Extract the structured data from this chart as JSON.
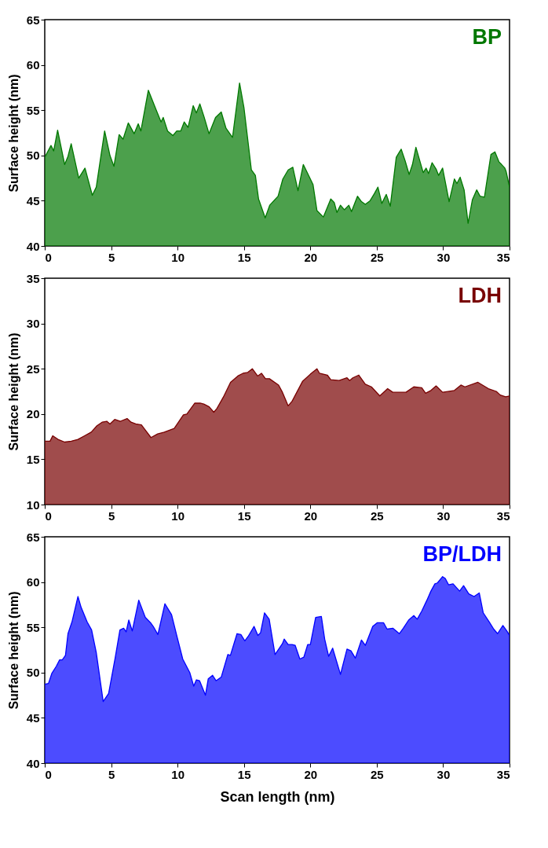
{
  "chart_data": [
    {
      "type": "area",
      "ylabel": "Surface height (nm)",
      "xlim": [
        0,
        35
      ],
      "xticks": [
        0,
        5,
        10,
        15,
        20,
        25,
        30,
        35
      ],
      "ylim": [
        40,
        65
      ],
      "yticks": [
        40,
        45,
        50,
        55,
        60,
        65
      ],
      "x": [
        0,
        0.47,
        0.67,
        0.97,
        1.5,
        1.75,
        1.99,
        2.56,
        3.03,
        3.58,
        3.88,
        4.51,
        4.91,
        5.21,
        5.6,
        5.9,
        6.29,
        6.73,
        7.04,
        7.24,
        7.8,
        8.4,
        8.76,
        8.92,
        9.25,
        9.65,
        9.94,
        10.24,
        10.5,
        10.79,
        11.18,
        11.42,
        11.68,
        12.01,
        12.37,
        12.86,
        13.29,
        13.65,
        14.14,
        14.67,
        15.0,
        15.56,
        15.86,
        16.1,
        16.6,
        16.94,
        17.57,
        17.93,
        18.33,
        18.68,
        19.07,
        19.47,
        19.8,
        20.2,
        20.5,
        20.98,
        21.54,
        21.8,
        22.0,
        22.27,
        22.56,
        22.9,
        23.1,
        23.55,
        23.85,
        24.14,
        24.5,
        24.83,
        25.09,
        25.38,
        25.72,
        26.02,
        26.47,
        26.84,
        27.14,
        27.44,
        27.69,
        27.95,
        28.5,
        28.72,
        28.9,
        29.17,
        29.47,
        29.66,
        29.96,
        30.45,
        30.85,
        31.04,
        31.28,
        31.58,
        31.88,
        32.2,
        32.53,
        32.78,
        33.11,
        33.6,
        33.9,
        34.2,
        34.4,
        34.65,
        34.75,
        35
      ],
      "series": [
        {
          "name": "BP",
          "color": "#007800",
          "values": [
            49.8,
            51.1,
            50.5,
            52.8,
            49.0,
            49.9,
            51.3,
            47.5,
            48.6,
            45.6,
            46.5,
            52.7,
            50.0,
            48.8,
            52.3,
            51.8,
            53.6,
            52.4,
            53.5,
            52.7,
            57.2,
            55.0,
            53.7,
            54.2,
            52.7,
            52.2,
            52.7,
            52.7,
            53.7,
            53.1,
            55.5,
            54.7,
            55.7,
            54.2,
            52.4,
            54.2,
            54.8,
            53.0,
            52.0,
            58.0,
            55.3,
            48.4,
            47.8,
            45.2,
            43.1,
            44.5,
            45.5,
            47.4,
            48.4,
            48.7,
            46.1,
            49.0,
            48.0,
            46.8,
            43.9,
            43.2,
            45.2,
            44.8,
            43.7,
            44.5,
            44.0,
            44.5,
            43.8,
            45.5,
            44.9,
            44.6,
            45.0,
            45.8,
            46.5,
            44.7,
            45.7,
            44.4,
            49.8,
            50.7,
            49.4,
            47.9,
            49.0,
            50.9,
            48.1,
            48.6,
            48.0,
            49.2,
            48.5,
            47.8,
            48.6,
            44.9,
            47.4,
            46.9,
            47.6,
            46.2,
            42.5,
            45.1,
            46.2,
            45.5,
            45.4,
            50.1,
            50.4,
            49.3,
            49.0,
            48.6,
            48.2,
            46.5
          ]
        }
      ]
    },
    {
      "type": "area",
      "ylabel": "Surface height (nm)",
      "xlim": [
        0,
        35
      ],
      "xticks": [
        0,
        5,
        10,
        15,
        20,
        25,
        30,
        35
      ],
      "ylim": [
        10,
        35
      ],
      "yticks": [
        10,
        15,
        20,
        25,
        30,
        35
      ],
      "x": [
        0,
        0.4,
        0.6,
        1,
        1.5,
        2,
        2.5,
        3,
        3.5,
        3.93,
        4.32,
        4.67,
        4.91,
        5.27,
        5.7,
        6.2,
        6.5,
        6.85,
        7.28,
        7.48,
        8.0,
        8.5,
        9.0,
        9.75,
        10.44,
        10.7,
        11.3,
        11.7,
        11.98,
        12.38,
        12.73,
        12.96,
        13.46,
        13.99,
        14.54,
        14.93,
        15.29,
        15.63,
        16.03,
        16.32,
        16.62,
        16.92,
        17.61,
        17.9,
        18.33,
        18.62,
        19.41,
        20.0,
        20.5,
        20.69,
        21.28,
        21.54,
        22.17,
        22.76,
        22.96,
        23.2,
        23.65,
        24.14,
        24.6,
        25.23,
        25.82,
        26.21,
        27.2,
        27.79,
        28.39,
        28.68,
        29.08,
        29.47,
        29.96,
        30.85,
        31.34,
        31.64,
        32.62,
        33.41,
        34.0,
        34.3,
        34.7,
        35
      ],
      "series": [
        {
          "name": "LDH",
          "color": "#780000",
          "values": [
            17.0,
            17.0,
            17.6,
            17.2,
            16.9,
            17.0,
            17.2,
            17.6,
            18.0,
            18.7,
            19.1,
            19.2,
            18.9,
            19.4,
            19.2,
            19.5,
            19.1,
            18.9,
            18.8,
            18.4,
            17.4,
            17.8,
            18.0,
            18.4,
            19.9,
            20.0,
            21.2,
            21.2,
            21.1,
            20.8,
            20.2,
            20.6,
            21.9,
            23.5,
            24.2,
            24.5,
            24.6,
            25.0,
            24.2,
            24.5,
            23.9,
            23.9,
            23.2,
            22.4,
            20.9,
            21.4,
            23.6,
            24.4,
            25.0,
            24.5,
            24.3,
            23.8,
            23.7,
            24.0,
            23.7,
            24.0,
            24.3,
            23.3,
            23.0,
            22.0,
            22.8,
            22.4,
            22.4,
            23.0,
            22.9,
            22.3,
            22.6,
            23.1,
            22.4,
            22.6,
            23.2,
            23.0,
            23.5,
            22.8,
            22.5,
            22.1,
            21.9,
            22.0
          ]
        }
      ]
    },
    {
      "type": "area",
      "xlabel": "Scan length (nm)",
      "ylabel": "Surface height (nm)",
      "xlim": [
        0,
        35
      ],
      "xticks": [
        0,
        5,
        10,
        15,
        20,
        25,
        30,
        35
      ],
      "ylim": [
        40,
        65
      ],
      "yticks": [
        40,
        45,
        50,
        55,
        60,
        65
      ],
      "x": [
        0,
        0.28,
        0.53,
        0.87,
        1.12,
        1.32,
        1.56,
        1.75,
        2.05,
        2.5,
        2.74,
        3.19,
        3.53,
        3.88,
        4.4,
        4.81,
        5.3,
        5.66,
        5.94,
        6.13,
        6.33,
        6.59,
        7.08,
        7.57,
        7.97,
        8.17,
        8.52,
        9.05,
        9.55,
        9.94,
        10.39,
        10.92,
        11.22,
        11.42,
        11.66,
        12.1,
        12.31,
        12.64,
        12.9,
        13.29,
        13.79,
        13.98,
        14.48,
        14.77,
        15.07,
        15.32,
        15.76,
        16.05,
        16.25,
        16.55,
        16.9,
        17.34,
        17.9,
        18.03,
        18.33,
        18.62,
        18.86,
        19.21,
        19.51,
        19.8,
        20.0,
        20.4,
        20.83,
        21.08,
        21.38,
        21.68,
        22.27,
        22.76,
        23.06,
        23.39,
        23.85,
        24.14,
        24.7,
        25.03,
        25.52,
        25.78,
        26.21,
        26.7,
        27.0,
        27.4,
        27.79,
        28.05,
        28.39,
        28.78,
        29.08,
        29.38,
        29.57,
        29.96,
        30.16,
        30.41,
        30.75,
        31.24,
        31.54,
        31.93,
        32.33,
        32.72,
        33.02,
        33.51,
        33.81,
        34.1,
        34.5,
        34.8,
        35
      ],
      "series": [
        {
          "name": "BP/LDH",
          "color": "#0000ff",
          "values": [
            48.7,
            48.8,
            49.9,
            50.7,
            51.4,
            51.4,
            51.9,
            54.3,
            55.6,
            58.4,
            57.2,
            55.6,
            54.7,
            52.2,
            46.8,
            47.7,
            51.6,
            54.7,
            54.9,
            54.5,
            55.8,
            54.6,
            58.0,
            56.1,
            55.5,
            55.1,
            54.2,
            57.6,
            56.4,
            54.1,
            51.5,
            50.0,
            48.5,
            49.2,
            49.1,
            47.5,
            49.3,
            49.7,
            49.1,
            49.5,
            52.0,
            51.9,
            54.3,
            54.2,
            53.5,
            54.0,
            55.1,
            54.1,
            54.4,
            56.6,
            55.9,
            52.0,
            53.2,
            53.7,
            53.1,
            53.1,
            53.0,
            51.5,
            51.7,
            53.1,
            53.1,
            56.1,
            56.2,
            53.7,
            51.8,
            52.7,
            49.8,
            52.6,
            52.4,
            51.6,
            53.6,
            53.0,
            55.1,
            55.5,
            55.5,
            54.8,
            54.9,
            54.3,
            54.9,
            55.8,
            56.3,
            55.9,
            56.8,
            58.0,
            59.0,
            59.8,
            59.9,
            60.6,
            60.4,
            59.7,
            59.8,
            59.0,
            59.6,
            58.7,
            58.4,
            58.8,
            56.6,
            55.5,
            54.8,
            54.3,
            55.2,
            54.6,
            54.1
          ]
        }
      ]
    }
  ]
}
